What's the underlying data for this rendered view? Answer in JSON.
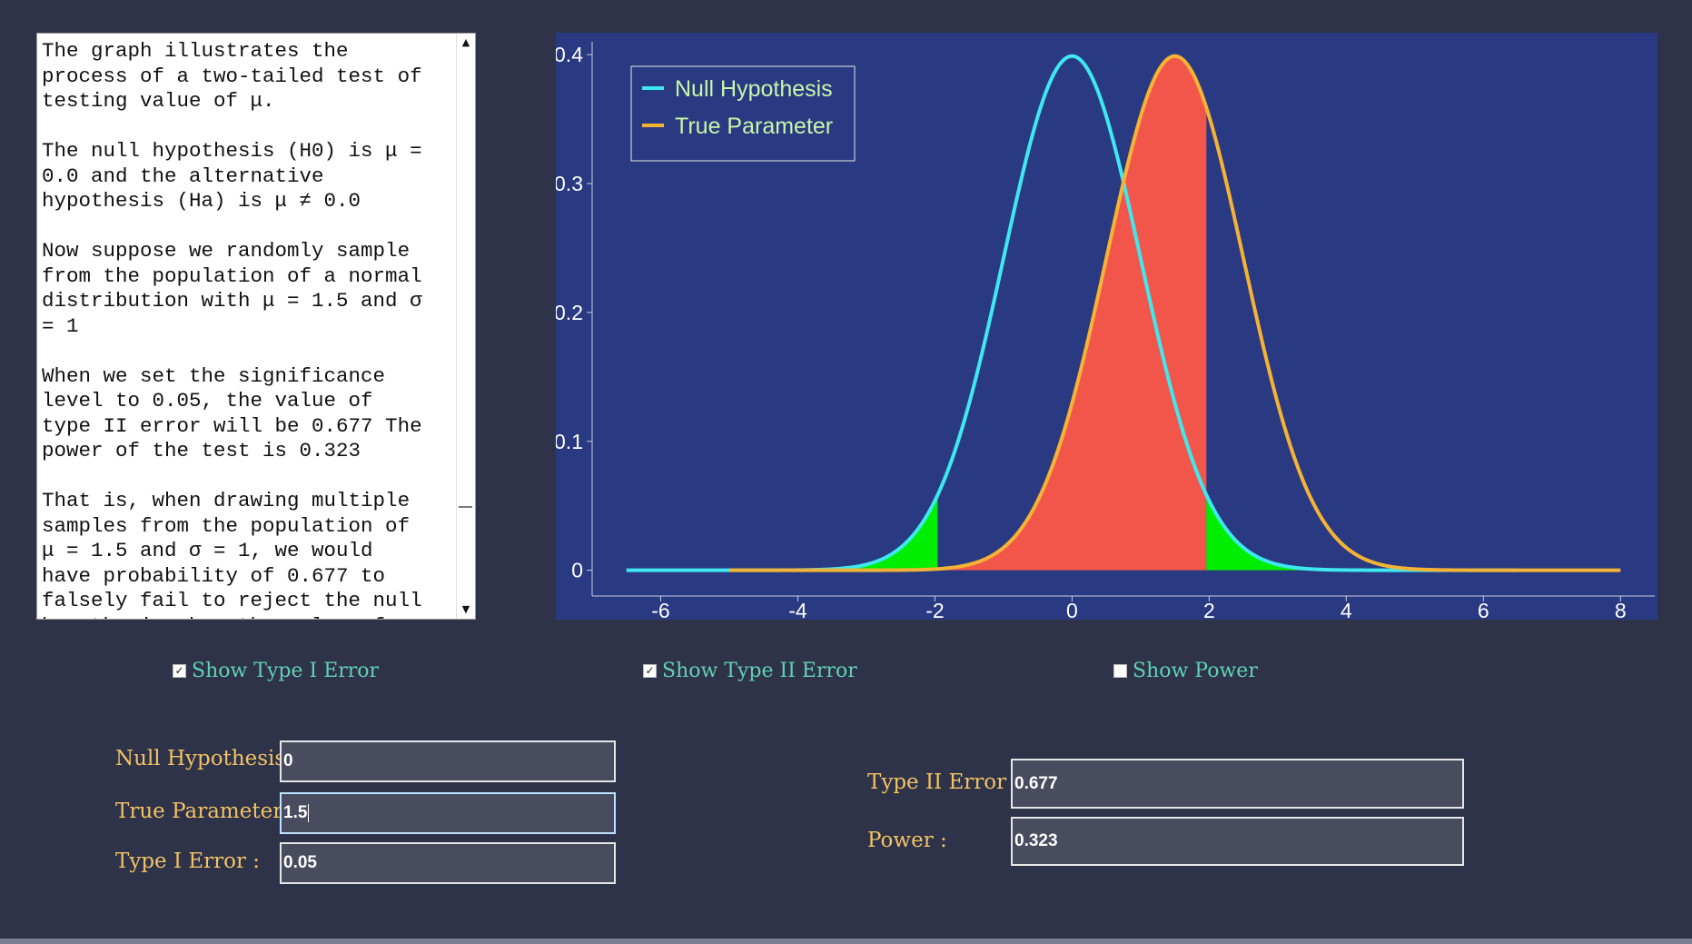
{
  "explanation": {
    "text": "The graph illustrates the\nprocess of a two-tailed test of\ntesting value of μ.\n\nThe null hypothesis (H0) is μ =\n0.0 and the alternative\nhypothesis (Ha) is μ ≠ 0.0\n\nNow suppose we randomly sample\nfrom the population of a normal\ndistribution with μ = 1.5 and σ\n= 1\n\nWhen we set the significance\nlevel to 0.05, the value of\ntype II error will be 0.677 The\npower of the test is 0.323\n\nThat is, when drawing multiple\nsamples from the population of\nμ = 1.5 and σ = 1, we would\nhave probability of 0.677 to\nfalsely fail to reject the null\nhypothesis when the value of",
    "scroll_up": "▲",
    "scroll_down": "▼"
  },
  "checkboxes": {
    "type1": {
      "label": "Show Type I Error",
      "checked": true
    },
    "type2": {
      "label": "Show Type II Error",
      "checked": true
    },
    "power": {
      "label": "Show Power",
      "checked": false
    }
  },
  "form": {
    "null_label": "Null Hypothesis :",
    "null_value": "0",
    "true_label": "True Parameter :",
    "true_value": "1.5",
    "alpha_label": "Type I Error :",
    "alpha_value": "0.05",
    "beta_label": "Type II Error :",
    "beta_value": "0.677",
    "power_label": "Power :",
    "power_value": "0.323"
  },
  "colors": {
    "background": "#2e3349",
    "plot_background": "#2a3a82",
    "null_curve": "#3ee8f0",
    "true_curve": "#f5b335",
    "type1_fill": "#00ee00",
    "type2_fill": "#f2564a",
    "legend_text": "#c9f5a8"
  },
  "chart_data": {
    "type": "line",
    "series": [
      {
        "name": "Null Hypothesis",
        "mean": 0,
        "sd": 1,
        "x_range": [
          -6.5,
          6.5
        ]
      },
      {
        "name": "True Parameter",
        "mean": 1.5,
        "sd": 1,
        "x_range": [
          -5,
          8
        ]
      }
    ],
    "critical_values": [
      -1.96,
      1.96
    ],
    "shaded": {
      "type1_error": true,
      "type2_error": true,
      "power": false
    },
    "xlim": [
      -7,
      8.5
    ],
    "ylim": [
      -0.02,
      0.41
    ],
    "x_ticks": [
      -6,
      -4,
      -2,
      0,
      2,
      4,
      6,
      8
    ],
    "y_ticks": [
      0,
      0.1,
      0.2,
      0.3,
      0.4
    ],
    "y_tick_labels": [
      "0",
      "0.1",
      "0.2",
      "0.3",
      "0.4"
    ],
    "legend_placement": "top-left"
  }
}
